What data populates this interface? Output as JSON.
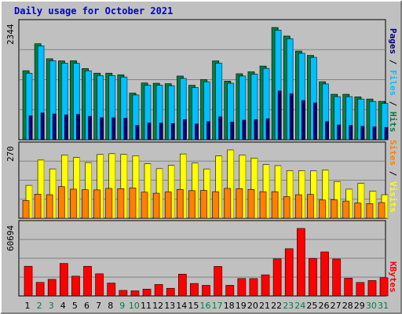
{
  "title": "Daily usage for October 2021",
  "colors": {
    "hits": "#008040",
    "files": "#00c0ff",
    "pages": "#000080",
    "visits": "#ffff00",
    "sites": "#ff8000",
    "kbytes": "#ff0000",
    "weekend_label": "#008040",
    "weekday_label": "#000000"
  },
  "chart_data": [
    {
      "type": "bar",
      "panel": "hits-files-pages",
      "y_max_label": "2344",
      "ylim": [
        0,
        2344
      ],
      "categories": [
        "1",
        "2",
        "3",
        "4",
        "5",
        "6",
        "7",
        "8",
        "9",
        "10",
        "11",
        "12",
        "13",
        "14",
        "15",
        "16",
        "17",
        "18",
        "19",
        "20",
        "21",
        "22",
        "23",
        "24",
        "25",
        "26",
        "27",
        "28",
        "29",
        "30",
        "31"
      ],
      "series": [
        {
          "name": "Hits",
          "values": [
            1442,
            2005,
            1691,
            1647,
            1650,
            1487,
            1390,
            1390,
            1357,
            974,
            1186,
            1180,
            1170,
            1330,
            1138,
            1258,
            1647,
            1225,
            1378,
            1419,
            1539,
            2344,
            2165,
            1852,
            1762,
            1212,
            950,
            950,
            895,
            850,
            802
          ]
        },
        {
          "name": "Files",
          "values": [
            1390,
            1960,
            1650,
            1600,
            1597,
            1440,
            1340,
            1340,
            1310,
            935,
            1140,
            1140,
            1130,
            1280,
            1090,
            1210,
            1600,
            1180,
            1330,
            1370,
            1490,
            2288,
            2110,
            1805,
            1720,
            1165,
            900,
            900,
            850,
            800,
            760
          ]
        },
        {
          "name": "Pages",
          "values": [
            500,
            560,
            540,
            520,
            530,
            490,
            460,
            460,
            450,
            300,
            350,
            350,
            340,
            420,
            330,
            380,
            480,
            370,
            410,
            420,
            440,
            1020,
            960,
            820,
            770,
            380,
            310,
            300,
            280,
            270,
            260
          ]
        }
      ],
      "legend": [
        "Pages",
        "Files",
        "Hits"
      ]
    },
    {
      "type": "bar",
      "panel": "visits-sites",
      "y_max_label": "270",
      "ylim": [
        0,
        270
      ],
      "categories": [
        "1",
        "2",
        "3",
        "4",
        "5",
        "6",
        "7",
        "8",
        "9",
        "10",
        "11",
        "12",
        "13",
        "14",
        "15",
        "16",
        "17",
        "18",
        "19",
        "20",
        "21",
        "22",
        "23",
        "24",
        "25",
        "26",
        "27",
        "28",
        "29",
        "30",
        "31"
      ],
      "series": [
        {
          "name": "Visits",
          "values": [
            130,
            230,
            195,
            250,
            240,
            220,
            252,
            255,
            253,
            247,
            215,
            196,
            209,
            254,
            218,
            195,
            246,
            270,
            250,
            238,
            212,
            208,
            188,
            188,
            187,
            190,
            145,
            115,
            138,
            107,
            93
          ]
        },
        {
          "name": "Sites",
          "values": [
            70,
            95,
            93,
            125,
            115,
            113,
            112,
            118,
            117,
            120,
            103,
            99,
            104,
            114,
            109,
            110,
            105,
            118,
            117,
            114,
            105,
            105,
            85,
            93,
            94,
            72,
            73,
            68,
            60,
            58,
            62
          ]
        }
      ],
      "legend": [
        "Sites",
        "Visits"
      ]
    },
    {
      "type": "bar",
      "panel": "kbytes",
      "y_max_label": "60694",
      "ylim": [
        0,
        60694
      ],
      "categories": [
        "1",
        "2",
        "3",
        "4",
        "5",
        "6",
        "7",
        "8",
        "9",
        "10",
        "11",
        "12",
        "13",
        "14",
        "15",
        "16",
        "17",
        "18",
        "19",
        "20",
        "21",
        "22",
        "23",
        "24",
        "25",
        "26",
        "27",
        "28",
        "29",
        "30",
        "31"
      ],
      "series": [
        {
          "name": "KBytes",
          "values": [
            26670,
            12150,
            14900,
            29220,
            17770,
            26660,
            19900,
            11590,
            4980,
            4610,
            6170,
            10320,
            6880,
            19590,
            11220,
            9530,
            26550,
            9570,
            15650,
            15610,
            18990,
            33330,
            42470,
            60694,
            33720,
            39570,
            33210,
            15930,
            12110,
            13850,
            16350
          ]
        }
      ],
      "legend": [
        "KBytes"
      ]
    }
  ],
  "day_labels": [
    {
      "day": "1",
      "weekend": false
    },
    {
      "day": "2",
      "weekend": true
    },
    {
      "day": "3",
      "weekend": true
    },
    {
      "day": "4",
      "weekend": false
    },
    {
      "day": "5",
      "weekend": false
    },
    {
      "day": "6",
      "weekend": false
    },
    {
      "day": "7",
      "weekend": false
    },
    {
      "day": "8",
      "weekend": false
    },
    {
      "day": "9",
      "weekend": true
    },
    {
      "day": "10",
      "weekend": true
    },
    {
      "day": "11",
      "weekend": false
    },
    {
      "day": "12",
      "weekend": false
    },
    {
      "day": "13",
      "weekend": false
    },
    {
      "day": "14",
      "weekend": false
    },
    {
      "day": "15",
      "weekend": false
    },
    {
      "day": "16",
      "weekend": true
    },
    {
      "day": "17",
      "weekend": true
    },
    {
      "day": "18",
      "weekend": false
    },
    {
      "day": "19",
      "weekend": false
    },
    {
      "day": "20",
      "weekend": false
    },
    {
      "day": "21",
      "weekend": false
    },
    {
      "day": "22",
      "weekend": false
    },
    {
      "day": "23",
      "weekend": true
    },
    {
      "day": "24",
      "weekend": true
    },
    {
      "day": "25",
      "weekend": false
    },
    {
      "day": "26",
      "weekend": false
    },
    {
      "day": "27",
      "weekend": false
    },
    {
      "day": "28",
      "weekend": false
    },
    {
      "day": "29",
      "weekend": false
    },
    {
      "day": "30",
      "weekend": true
    },
    {
      "day": "31",
      "weekend": true
    }
  ]
}
